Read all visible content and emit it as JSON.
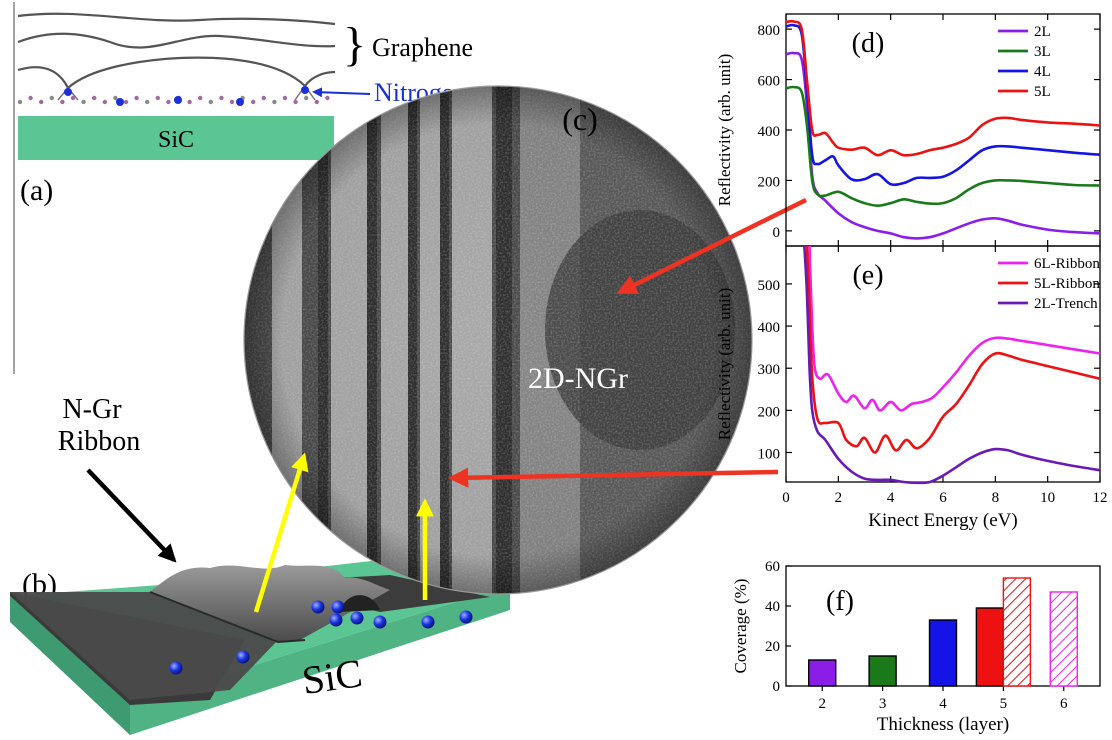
{
  "panels": {
    "a": {
      "label": "(a)",
      "graphene": "Graphene",
      "nitrogen": "Nitrogen",
      "substrate": "SiC"
    },
    "b": {
      "label": "(b)",
      "ribbon_line1": "N-Gr",
      "ribbon_line2": "Ribbon",
      "substrate": "SiC"
    },
    "c": {
      "label": "(c)",
      "region": "2D-NGr"
    },
    "f": {
      "label": "(f)"
    }
  },
  "colors": {
    "2L": "#8a1ee6",
    "3L": "#1a7a1a",
    "4L": "#1414e6",
    "5L": "#ee1111",
    "6L-Ribbon": "#ee22ee",
    "5L-Ribbon": "#ee1111",
    "2L-Trench": "#6a1ab4",
    "sic": "#5cc594",
    "nitrogen": "#1a2fd8",
    "arrow_red": "#ee3322",
    "arrow_yellow": "#ffff00"
  },
  "chart_data": [
    {
      "id": "d",
      "type": "line",
      "title": "(d)",
      "xlabel": "",
      "ylabel": "Reflectivity (arb. unit)",
      "xlim": [
        0,
        12
      ],
      "ylim": [
        -60,
        860
      ],
      "yticks": [
        0,
        200,
        400,
        600,
        800
      ],
      "legend": "top-right",
      "series": [
        {
          "name": "2L",
          "x": [
            0,
            0.3,
            0.6,
            0.8,
            1.0,
            1.2,
            1.5,
            2.0,
            2.5,
            3.0,
            3.5,
            4.0,
            4.5,
            5.0,
            5.5,
            6.0,
            6.5,
            7.0,
            7.5,
            8.0,
            8.5,
            9.0,
            10.0,
            11.0,
            12.0
          ],
          "y": [
            700,
            705,
            680,
            500,
            220,
            150,
            120,
            70,
            35,
            15,
            0,
            -10,
            -25,
            -30,
            -25,
            -10,
            10,
            30,
            45,
            50,
            40,
            25,
            5,
            -5,
            -10
          ]
        },
        {
          "name": "3L",
          "x": [
            0,
            0.3,
            0.6,
            0.8,
            1.0,
            1.2,
            1.5,
            2.0,
            2.5,
            3.0,
            3.5,
            4.0,
            4.5,
            5.0,
            5.5,
            6.0,
            6.5,
            7.0,
            7.5,
            8.0,
            8.5,
            9.0,
            10.0,
            11.0,
            12.0
          ],
          "y": [
            565,
            570,
            550,
            420,
            200,
            145,
            140,
            155,
            130,
            110,
            100,
            110,
            125,
            115,
            108,
            110,
            130,
            165,
            190,
            200,
            200,
            198,
            190,
            182,
            180
          ]
        },
        {
          "name": "4L",
          "x": [
            0,
            0.3,
            0.6,
            0.8,
            1.0,
            1.2,
            1.5,
            1.8,
            2.0,
            2.5,
            3.0,
            3.5,
            4.0,
            4.5,
            5.0,
            5.5,
            6.0,
            6.5,
            7.0,
            7.5,
            8.0,
            8.5,
            9.0,
            10.0,
            11.0,
            12.0
          ],
          "y": [
            810,
            815,
            780,
            560,
            300,
            265,
            280,
            295,
            260,
            205,
            205,
            225,
            185,
            190,
            210,
            210,
            215,
            240,
            280,
            320,
            335,
            335,
            330,
            320,
            310,
            302
          ]
        },
        {
          "name": "5L",
          "x": [
            0,
            0.3,
            0.6,
            0.8,
            1.0,
            1.2,
            1.5,
            1.8,
            2.0,
            2.5,
            3.0,
            3.5,
            4.0,
            4.5,
            5.0,
            5.5,
            6.0,
            6.5,
            7.0,
            7.5,
            8.0,
            8.5,
            9.0,
            10.0,
            11.0,
            12.0
          ],
          "y": [
            828,
            830,
            800,
            600,
            400,
            380,
            388,
            350,
            330,
            322,
            330,
            300,
            320,
            300,
            305,
            320,
            330,
            345,
            370,
            420,
            445,
            448,
            440,
            430,
            425,
            418
          ]
        }
      ]
    },
    {
      "id": "e",
      "type": "line",
      "title": "(e)",
      "xlabel": "Kinect Energy (eV)",
      "ylabel": "Reflectivity (arb. unit)",
      "xlim": [
        0,
        12
      ],
      "ylim": [
        30,
        590
      ],
      "xticks": [
        0,
        2,
        4,
        6,
        8,
        10,
        12
      ],
      "yticks": [
        100,
        200,
        300,
        400,
        500
      ],
      "legend": "top-right",
      "series": [
        {
          "name": "6L-Ribbon",
          "x": [
            0.9,
            1.0,
            1.1,
            1.3,
            1.6,
            2.0,
            2.3,
            2.6,
            3.0,
            3.3,
            3.6,
            4.0,
            4.4,
            4.8,
            5.2,
            5.6,
            6.0,
            6.5,
            7.0,
            7.5,
            8.0,
            8.5,
            9.0,
            10.0,
            11.0,
            12.0
          ],
          "y": [
            590,
            400,
            300,
            275,
            285,
            240,
            220,
            235,
            205,
            225,
            200,
            220,
            200,
            215,
            220,
            230,
            255,
            290,
            330,
            360,
            372,
            370,
            365,
            355,
            345,
            335
          ]
        },
        {
          "name": "5L-Ribbon",
          "x": [
            0.8,
            0.9,
            1.0,
            1.2,
            1.5,
            2.0,
            2.3,
            2.7,
            3.0,
            3.4,
            3.8,
            4.2,
            4.6,
            5.0,
            5.5,
            6.0,
            6.5,
            7.0,
            7.5,
            8.0,
            8.5,
            9.0,
            10.0,
            11.0,
            12.0
          ],
          "y": [
            590,
            450,
            280,
            180,
            170,
            170,
            130,
            115,
            135,
            100,
            140,
            105,
            130,
            110,
            135,
            185,
            215,
            260,
            310,
            335,
            330,
            320,
            305,
            290,
            275
          ]
        },
        {
          "name": "2L-Trench",
          "x": [
            0.7,
            0.8,
            0.9,
            1.0,
            1.2,
            1.5,
            2.0,
            2.5,
            3.0,
            3.5,
            4.0,
            4.5,
            5.0,
            5.5,
            6.0,
            6.5,
            7.0,
            7.5,
            8.0,
            8.5,
            9.0,
            10.0,
            11.0,
            12.0
          ],
          "y": [
            590,
            480,
            300,
            200,
            150,
            130,
            85,
            55,
            38,
            35,
            35,
            30,
            28,
            30,
            45,
            65,
            85,
            100,
            108,
            105,
            95,
            80,
            68,
            58
          ]
        }
      ]
    },
    {
      "id": "f",
      "type": "bar",
      "title": "(f)",
      "xlabel": "Thickness (layer)",
      "ylabel": "Coverage (%)",
      "xlim": [
        1.4,
        6.6
      ],
      "ylim": [
        0,
        60
      ],
      "xticks": [
        2,
        3,
        4,
        5,
        6
      ],
      "yticks": [
        0,
        20,
        40,
        60
      ],
      "bars": [
        {
          "x": 2,
          "value": 13,
          "series": "2L",
          "hatched": false
        },
        {
          "x": 3,
          "value": 15,
          "series": "3L",
          "hatched": false
        },
        {
          "x": 4,
          "value": 33,
          "series": "4L",
          "hatched": false
        },
        {
          "x": 5,
          "value": 39,
          "series": "5L",
          "hatched": false
        },
        {
          "x": 5,
          "value": 54,
          "series": "5L-Ribbon",
          "hatched": true
        },
        {
          "x": 6,
          "value": 47,
          "series": "6L-Ribbon",
          "hatched": true
        }
      ]
    }
  ]
}
